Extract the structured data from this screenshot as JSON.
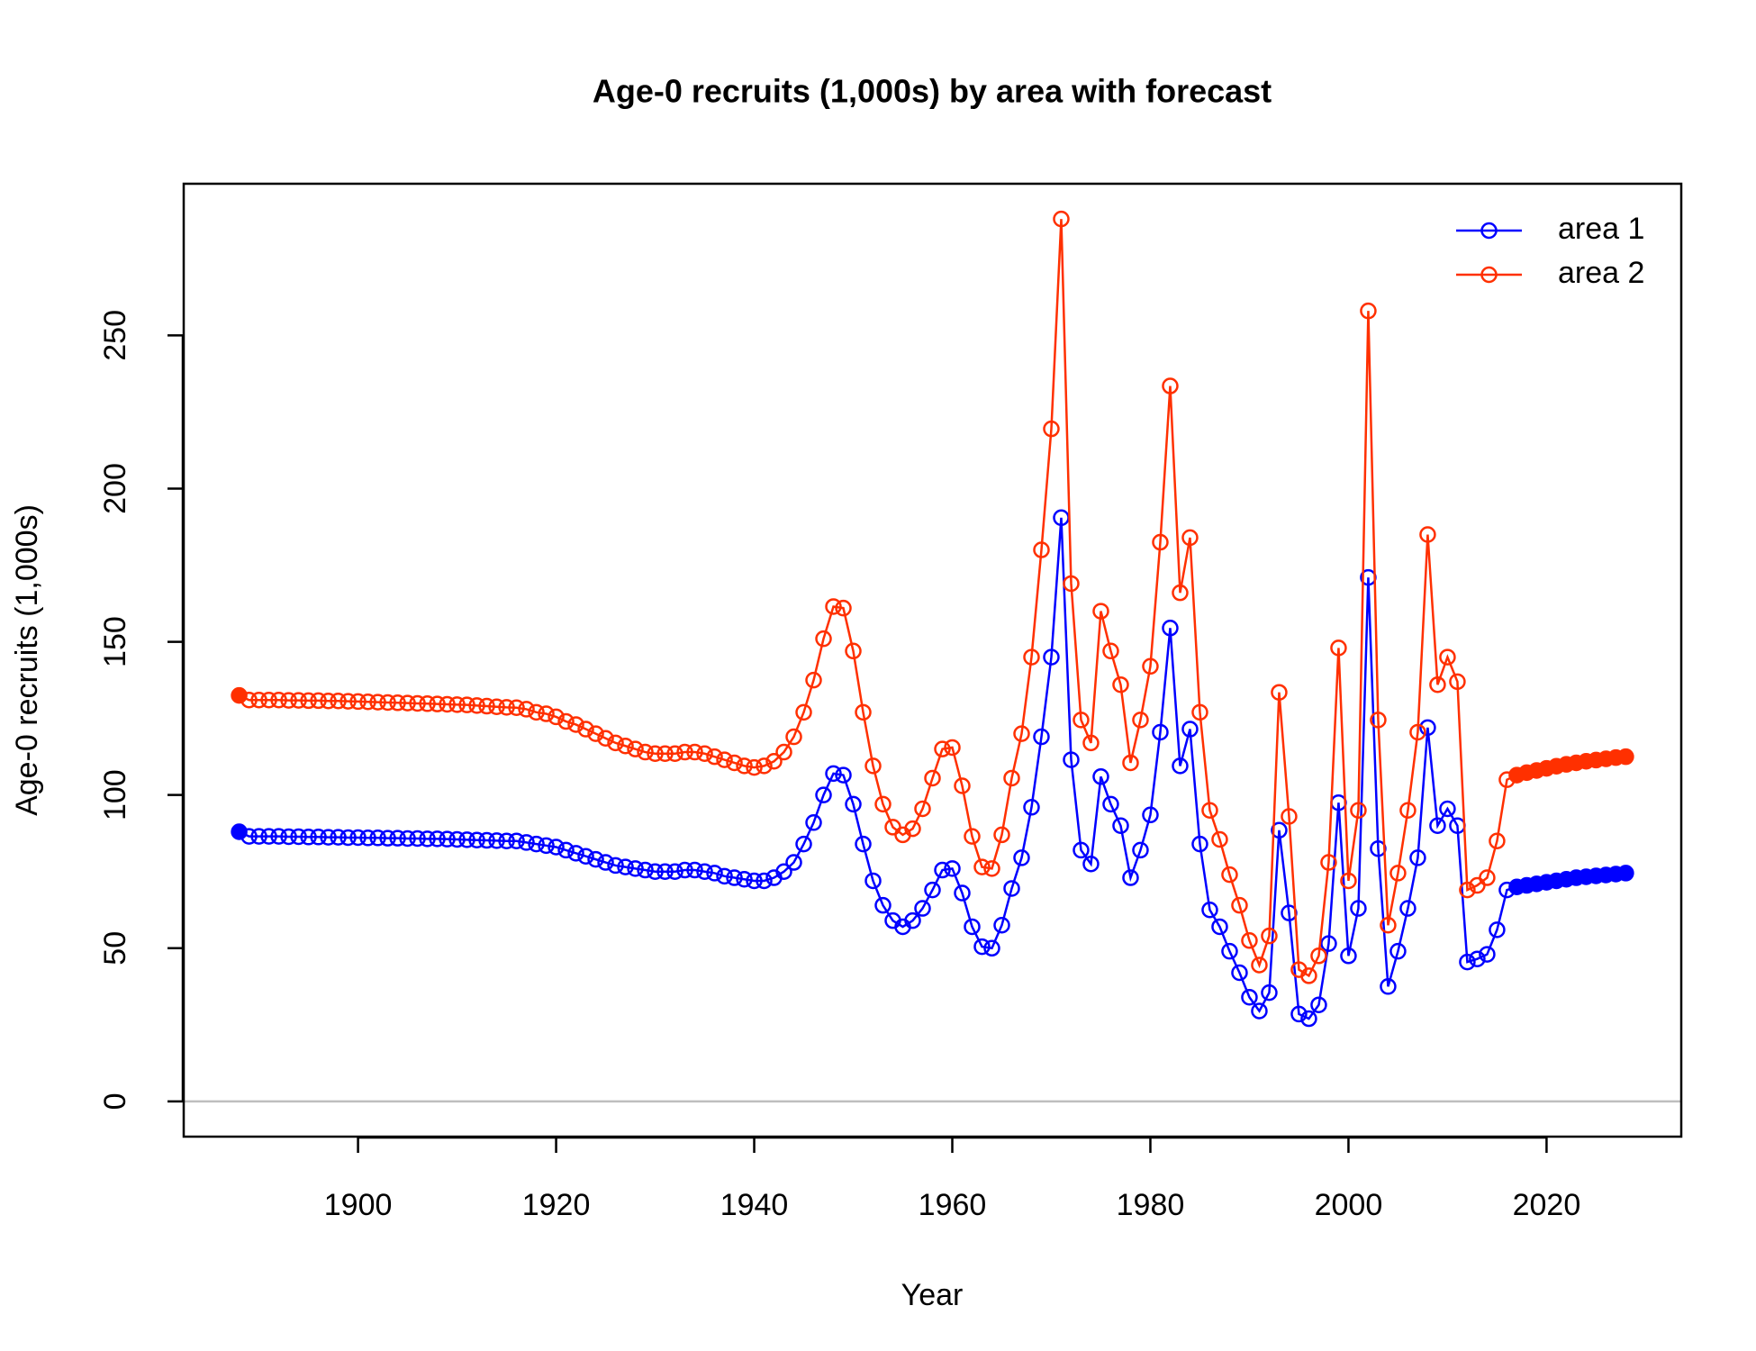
{
  "chart_data": {
    "type": "line",
    "title": "Age-0 recruits (1,000s) by area with forecast",
    "xlabel": "Year",
    "ylabel": "Age-0 recruits (1,000s)",
    "x": [
      1888,
      1889,
      1890,
      1891,
      1892,
      1893,
      1894,
      1895,
      1896,
      1897,
      1898,
      1899,
      1900,
      1901,
      1902,
      1903,
      1904,
      1905,
      1906,
      1907,
      1908,
      1909,
      1910,
      1911,
      1912,
      1913,
      1914,
      1915,
      1916,
      1917,
      1918,
      1919,
      1920,
      1921,
      1922,
      1923,
      1924,
      1925,
      1926,
      1927,
      1928,
      1929,
      1930,
      1931,
      1932,
      1933,
      1934,
      1935,
      1936,
      1937,
      1938,
      1939,
      1940,
      1941,
      1942,
      1943,
      1944,
      1945,
      1946,
      1947,
      1948,
      1949,
      1950,
      1951,
      1952,
      1953,
      1954,
      1955,
      1956,
      1957,
      1958,
      1959,
      1960,
      1961,
      1962,
      1963,
      1964,
      1965,
      1966,
      1967,
      1968,
      1969,
      1970,
      1971,
      1972,
      1973,
      1974,
      1975,
      1976,
      1977,
      1978,
      1979,
      1980,
      1981,
      1982,
      1983,
      1984,
      1985,
      1986,
      1987,
      1988,
      1989,
      1990,
      1991,
      1992,
      1993,
      1994,
      1995,
      1996,
      1997,
      1998,
      1999,
      2000,
      2001,
      2002,
      2003,
      2004,
      2005,
      2006,
      2007,
      2008,
      2009,
      2010,
      2011,
      2012,
      2013,
      2014,
      2015,
      2016,
      2017,
      2018,
      2019,
      2020,
      2021,
      2022,
      2023,
      2024,
      2025,
      2026,
      2027,
      2028
    ],
    "series": [
      {
        "name": "area 1",
        "color": "#0000ff",
        "values": [
          88,
          86.5,
          86.5,
          86.5,
          86.5,
          86.4,
          86.4,
          86.3,
          86.3,
          86.2,
          86.2,
          86.1,
          86.1,
          86,
          86,
          85.9,
          85.9,
          85.8,
          85.8,
          85.7,
          85.7,
          85.6,
          85.5,
          85.4,
          85.3,
          85.2,
          85.1,
          85,
          85,
          84.5,
          84,
          83.5,
          83,
          82,
          81,
          80,
          79,
          78,
          77,
          76.5,
          76,
          75.5,
          75,
          75,
          75,
          75.5,
          75.5,
          75,
          74.5,
          73.5,
          73,
          72.5,
          72,
          72,
          73,
          75,
          78,
          84,
          91,
          100,
          107,
          106.5,
          97,
          84,
          72,
          64,
          59,
          57,
          59,
          63,
          69,
          75.5,
          76,
          68,
          57,
          50.5,
          50,
          57.5,
          69.5,
          79.5,
          96,
          119,
          145,
          190.5,
          111.5,
          82,
          77.5,
          106,
          97,
          90,
          73,
          82,
          93.5,
          120.5,
          154.5,
          109.5,
          121.5,
          84,
          62.5,
          57,
          49,
          42,
          34,
          29.5,
          35.5,
          88.5,
          61.5,
          28.5,
          27,
          31.5,
          51.5,
          97.5,
          47.5,
          63,
          171,
          82.5,
          37.5,
          49,
          63,
          79.5,
          122,
          90,
          95.5,
          90,
          45.5,
          46.5,
          48,
          56,
          69,
          70,
          70.5,
          71,
          71.5,
          72,
          72.5,
          73,
          73.3,
          73.6,
          73.9,
          74.2,
          74.5
        ]
      },
      {
        "name": "area 2",
        "color": "#ff3000",
        "values": [
          132.5,
          131,
          131,
          131,
          131,
          130.9,
          130.9,
          130.8,
          130.8,
          130.7,
          130.7,
          130.6,
          130.5,
          130.4,
          130.3,
          130.2,
          130.1,
          130,
          129.9,
          129.8,
          129.7,
          129.6,
          129.5,
          129.4,
          129.2,
          129,
          128.8,
          128.6,
          128.5,
          128,
          127,
          126.5,
          125.5,
          124,
          123,
          121.5,
          120,
          118.5,
          117,
          116,
          115,
          114,
          113.5,
          113.5,
          113.5,
          114,
          114,
          113.5,
          112.5,
          111.5,
          110.5,
          109.5,
          109,
          109.5,
          111,
          114,
          119,
          127,
          137.5,
          151,
          161.5,
          161,
          147,
          127,
          109.5,
          97,
          89.5,
          87,
          89,
          95.5,
          105.5,
          115,
          115.5,
          103,
          86.5,
          76.5,
          76,
          87,
          105.5,
          120,
          145,
          180,
          219.5,
          288,
          169,
          124.5,
          117,
          160,
          147,
          136,
          110.5,
          124.5,
          142,
          182.5,
          233.5,
          166,
          184,
          127,
          95,
          85.5,
          74,
          64,
          52.5,
          44.5,
          54,
          133.5,
          93,
          43,
          41,
          47.5,
          78,
          148,
          72,
          95,
          258,
          124.5,
          57.5,
          74.5,
          95,
          120.5,
          185,
          136,
          145,
          137,
          69,
          70.5,
          73,
          85,
          105,
          106.5,
          107.3,
          108,
          108.7,
          109.4,
          110,
          110.5,
          111,
          111.4,
          111.8,
          112.2,
          112.5
        ]
      }
    ],
    "filled_x": [
      1888,
      2017,
      2018,
      2019,
      2020,
      2021,
      2022,
      2023,
      2024,
      2025,
      2026,
      2027,
      2028
    ],
    "hline": 0,
    "xlim": [
      1882.4,
      2033.6
    ],
    "xticks": [
      1900,
      1920,
      1940,
      1960,
      1980,
      2000,
      2020
    ],
    "ylim": [
      -11.5,
      299.5
    ],
    "yticks": [
      0,
      50,
      100,
      150,
      200,
      250
    ],
    "legend": "topright"
  }
}
